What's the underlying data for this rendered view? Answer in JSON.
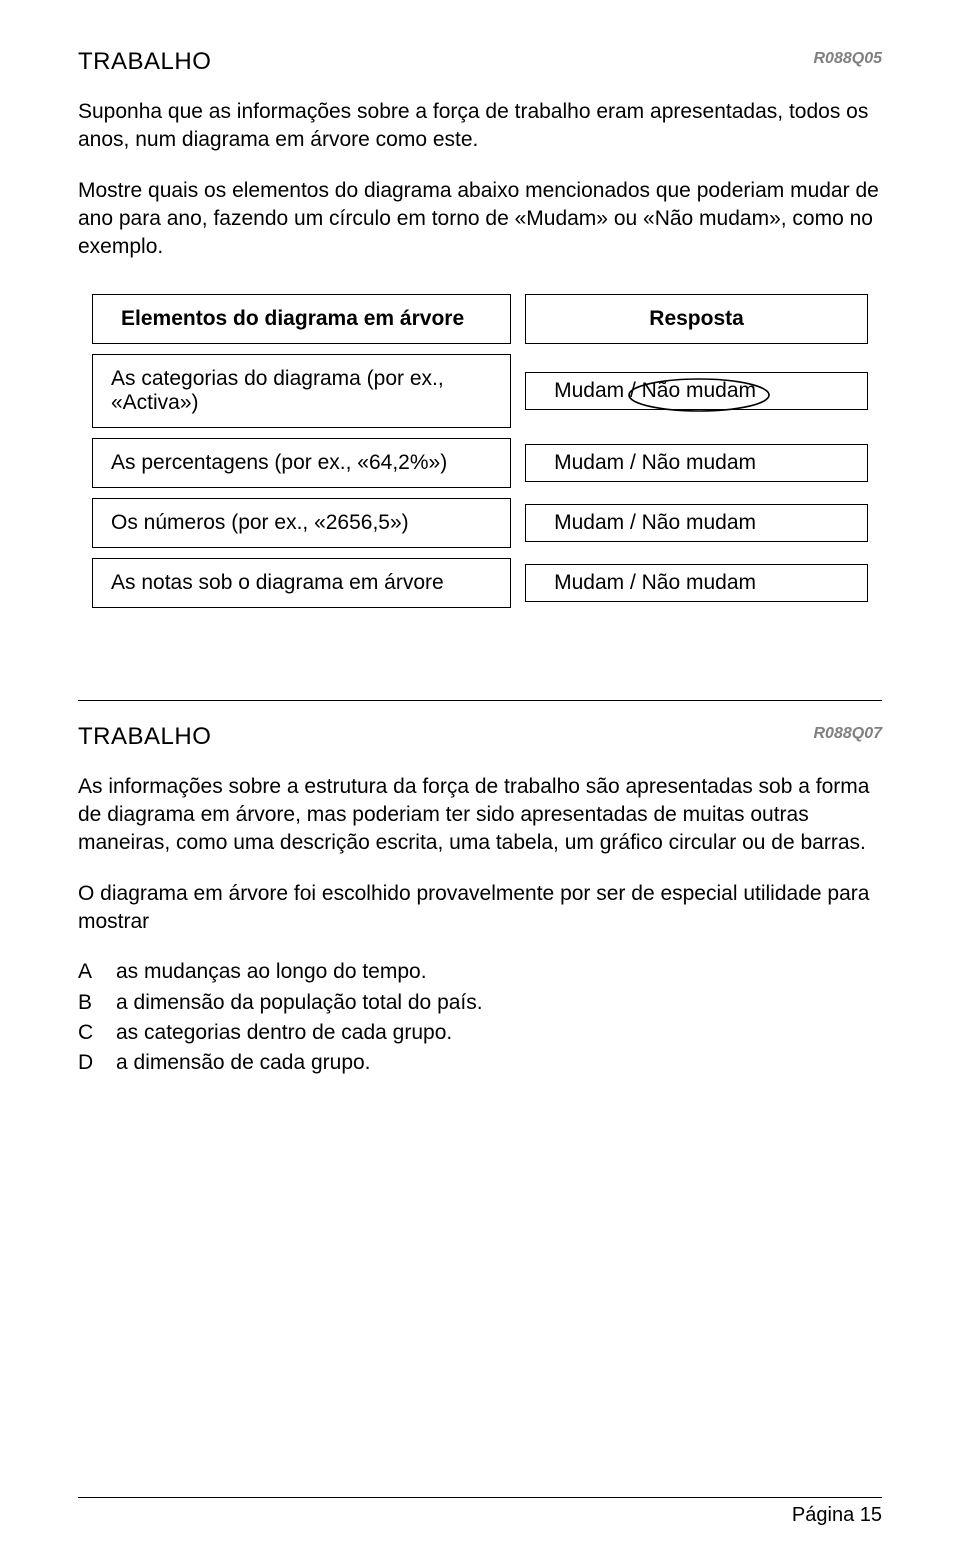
{
  "q1": {
    "title": "TRABALHO",
    "code": "R088Q05",
    "intro": "Suponha que as informações sobre a força de trabalho eram apresentadas, todos os anos, num diagrama em árvore como este.",
    "instr": "Mostre quais os elementos do diagrama abaixo mencionados que poderiam mudar de ano para ano, fazendo um círculo em torno de «Mudam» ou «Não mudam», como no exemplo.",
    "table": {
      "header_left": "Elementos do diagrama em árvore",
      "header_right": "Resposta",
      "answer_text": "Mudam / Não mudam",
      "rows": [
        {
          "left": "As categorias do diagrama (por ex., «Activa»)",
          "circled": true
        },
        {
          "left": "As percentagens (por ex., «64,2%»)",
          "circled": false
        },
        {
          "left": "Os números (por ex., «2656,5»)",
          "circled": false
        },
        {
          "left": "As notas sob o diagrama em árvore",
          "circled": false
        }
      ]
    }
  },
  "q2": {
    "title": "TRABALHO",
    "code": "R088Q07",
    "p1": "As informações sobre a estrutura da força de trabalho são apresentadas sob a forma de diagrama em árvore, mas poderiam ter sido apresentadas de muitas outras maneiras, como uma descrição escrita, uma tabela, um gráfico circular ou de barras.",
    "p2": "O diagrama em árvore foi escolhido provavelmente por ser de especial utilidade para mostrar",
    "options": [
      {
        "letter": "A",
        "text": "as mudanças ao longo do tempo."
      },
      {
        "letter": "B",
        "text": "a dimensão da população total do país."
      },
      {
        "letter": "C",
        "text": "as categorias dentro de cada grupo."
      },
      {
        "letter": "D",
        "text": "a dimensão de cada grupo."
      }
    ]
  },
  "footer": {
    "page": "Página 15"
  },
  "style": {
    "muted": "#808080",
    "text": "#000000",
    "circle_stroke": "#000000"
  }
}
